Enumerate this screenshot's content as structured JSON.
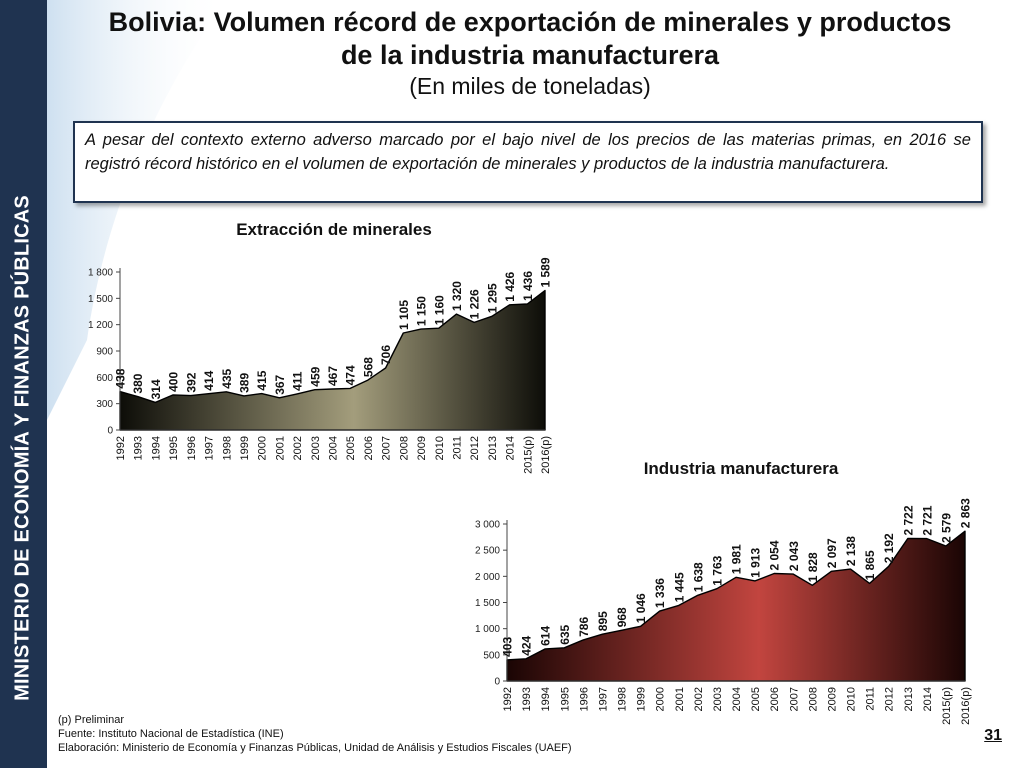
{
  "sidebar": {
    "text": "MINISTERIO DE ECONOMÍA Y FINANZAS PÚBLICAS"
  },
  "header": {
    "title_line1": "Bolivia: Volumen récord de exportación de minerales y productos",
    "title_line2": "de la industria manufacturera",
    "subtitle": "(En miles de toneladas)"
  },
  "note": {
    "text": "A pesar del contexto externo adverso marcado por el bajo nivel de los precios de las materias primas, en 2016 se registró récord histórico en el volumen de exportación de minerales y productos de la industria manufacturera."
  },
  "footer": {
    "line1": "(p) Preliminar",
    "line2": "Fuente: Instituto Nacional de Estadística (INE)",
    "line3": "Elaboración: Ministerio de Economía y Finanzas Públicas, Unidad de Análisis y Estudios Fiscales (UAEF)"
  },
  "page_number": "31",
  "colors": {
    "sidebar": "#1f3350",
    "chart1_dark": "#0d0d08",
    "chart1_light": "#a39d7c",
    "chart2_dark": "#1a0504",
    "chart2_light": "#c2453f"
  },
  "chart_data": [
    {
      "type": "area",
      "title": "Extracción de minerales",
      "categories": [
        "1992",
        "1993",
        "1994",
        "1995",
        "1996",
        "1997",
        "1998",
        "1999",
        "2000",
        "2001",
        "2002",
        "2003",
        "2004",
        "2005",
        "2006",
        "2007",
        "2008",
        "2009",
        "2010",
        "2011",
        "2012",
        "2013",
        "2014",
        "2015(p)",
        "2016(p)"
      ],
      "values": [
        438,
        380,
        314,
        400,
        392,
        414,
        435,
        389,
        415,
        367,
        411,
        459,
        467,
        474,
        568,
        706,
        1105,
        1150,
        1160,
        1320,
        1226,
        1295,
        1426,
        1436,
        1589
      ],
      "labels": [
        "438",
        "380",
        "314",
        "400",
        "392",
        "414",
        "435",
        "389",
        "415",
        "367",
        "411",
        "459",
        "467",
        "474",
        "568",
        "706",
        "1 105",
        "1 150",
        "1 160",
        "1 320",
        "1 226",
        "1 295",
        "1 426",
        "1 436",
        "1 589"
      ],
      "yticks": [
        "0",
        "300",
        "600",
        "900",
        "1 200",
        "1 500",
        "1 800"
      ],
      "ylim": [
        0,
        1800
      ],
      "grid": false
    },
    {
      "type": "area",
      "title": "Industria manufacturera",
      "categories": [
        "1992",
        "1993",
        "1994",
        "1995",
        "1996",
        "1997",
        "1998",
        "1999",
        "2000",
        "2001",
        "2002",
        "2003",
        "2004",
        "2005",
        "2006",
        "2007",
        "2008",
        "2009",
        "2010",
        "2011",
        "2012",
        "2013",
        "2014",
        "2015(p)",
        "2016(p)"
      ],
      "values": [
        403,
        424,
        614,
        635,
        786,
        895,
        968,
        1046,
        1336,
        1445,
        1638,
        1763,
        1981,
        1913,
        2054,
        2043,
        1828,
        2097,
        2138,
        1865,
        2192,
        2722,
        2721,
        2579,
        2863
      ],
      "labels": [
        "403",
        "424",
        "614",
        "635",
        "786",
        "895",
        "968",
        "1 046",
        "1 336",
        "1 445",
        "1 638",
        "1 763",
        "1 981",
        "1 913",
        "2 054",
        "2 043",
        "1 828",
        "2 097",
        "2 138",
        "1 865",
        "2 192",
        "2 722",
        "2 721",
        "2 579",
        "2 863"
      ],
      "yticks": [
        "0",
        "500",
        "1 000",
        "1 500",
        "2 000",
        "2 500",
        "3 000"
      ],
      "ylim": [
        0,
        3000
      ],
      "grid": false
    }
  ]
}
